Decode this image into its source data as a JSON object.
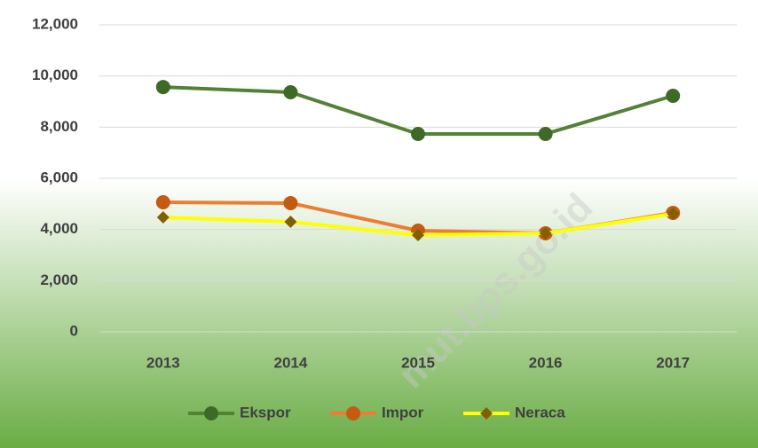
{
  "chart_data": {
    "type": "line",
    "categories": [
      "2013",
      "2014",
      "2015",
      "2016",
      "2017"
    ],
    "series": [
      {
        "name": "Ekspor",
        "color": "#548235",
        "marker_color": "#3d6b27",
        "marker": "circle",
        "values": [
          9570,
          9365,
          7735,
          7735,
          9226
        ]
      },
      {
        "name": "Impor",
        "color": "#ed7d31",
        "marker_color": "#c55a11",
        "marker": "circle",
        "values": [
          5064,
          5030,
          3954,
          3850,
          4648
        ]
      },
      {
        "name": "Neraca",
        "color": "#ffff00",
        "marker_color": "#806000",
        "marker": "diamond",
        "values": [
          4475,
          4300,
          3780,
          3850,
          4613
        ]
      }
    ],
    "ylim": [
      0,
      12000
    ],
    "yticks": [
      {
        "value": 0,
        "label": "0"
      },
      {
        "value": 2000,
        "label": "2,000"
      },
      {
        "value": 4000,
        "label": "4,000"
      },
      {
        "value": 6000,
        "label": "6,000"
      },
      {
        "value": 8000,
        "label": "8,000"
      },
      {
        "value": 10000,
        "label": "10,000"
      },
      {
        "value": 12000,
        "label": "12,000"
      }
    ],
    "grid": true,
    "legend": "bottom",
    "watermark": "mut.bps.go.id"
  }
}
